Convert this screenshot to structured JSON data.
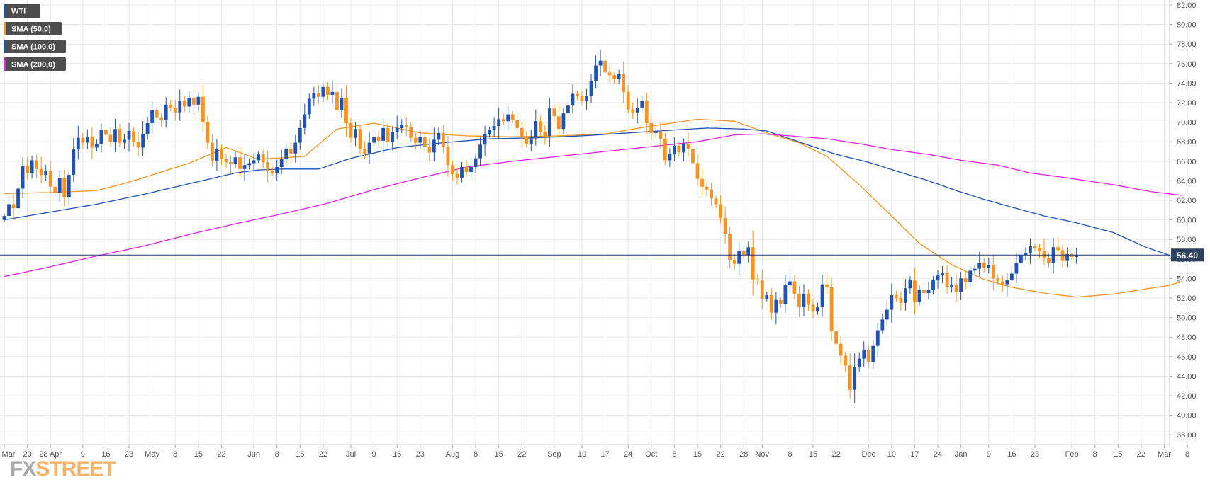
{
  "colors": {
    "bull": "#1f52b5",
    "bear": "#f7931e",
    "price_line": "#1a3a7a",
    "price_tag_bg": "#2b3f5e",
    "grid": "#e8e8e8",
    "axis_text": "#555555",
    "legend_bg": "#4d4d4d",
    "watermark_fx": "#a9a9a9",
    "watermark_street": "#f7b267"
  },
  "legend": [
    {
      "label": "WTI",
      "color": "#1f52b5"
    },
    {
      "label": "SMA (50,0)",
      "color": "#f7931e"
    },
    {
      "label": "SMA (100,0)",
      "color": "#1f52b5"
    },
    {
      "label": "SMA (200,0)",
      "color": "#e020e0"
    }
  ],
  "watermark": {
    "part1": "FX",
    "part2": "STREET"
  },
  "current_price": {
    "value": 56.4,
    "label": "56.40"
  },
  "chart_data": {
    "type": "candlestick",
    "symbol": "WTI",
    "ylim": [
      37,
      82.5
    ],
    "y_ticks": [
      "82.00",
      "80.00",
      "78.00",
      "76.00",
      "74.00",
      "72.00",
      "70.00",
      "68.00",
      "66.00",
      "64.00",
      "62.00",
      "60.00",
      "58.00",
      "56.00",
      "54.00",
      "52.00",
      "50.00",
      "48.00",
      "46.00",
      "44.00",
      "42.00",
      "40.00",
      "38.00"
    ],
    "x_ticks": [
      {
        "label": "Mar",
        "i": 0
      },
      {
        "label": "20",
        "i": 5
      },
      {
        "label": "28 Apr",
        "i": 10
      },
      {
        "label": "9",
        "i": 17
      },
      {
        "label": "16",
        "i": 22
      },
      {
        "label": "23",
        "i": 27
      },
      {
        "label": "May",
        "i": 32
      },
      {
        "label": "8",
        "i": 37
      },
      {
        "label": "15",
        "i": 42
      },
      {
        "label": "22",
        "i": 47
      },
      {
        "label": "Jun",
        "i": 54
      },
      {
        "label": "8",
        "i": 59
      },
      {
        "label": "15",
        "i": 64
      },
      {
        "label": "22",
        "i": 69
      },
      {
        "label": "Jul",
        "i": 75
      },
      {
        "label": "9",
        "i": 80
      },
      {
        "label": "16",
        "i": 85
      },
      {
        "label": "23",
        "i": 90
      },
      {
        "label": "Aug",
        "i": 97
      },
      {
        "label": "8",
        "i": 102
      },
      {
        "label": "15",
        "i": 107
      },
      {
        "label": "22",
        "i": 112
      },
      {
        "label": "Sep",
        "i": 119
      },
      {
        "label": "10",
        "i": 125
      },
      {
        "label": "17",
        "i": 130
      },
      {
        "label": "24",
        "i": 135
      },
      {
        "label": "Oct",
        "i": 140
      },
      {
        "label": "8",
        "i": 145
      },
      {
        "label": "15",
        "i": 150
      },
      {
        "label": "22",
        "i": 155
      },
      {
        "label": "28",
        "i": 160
      },
      {
        "label": "Nov",
        "i": 164
      },
      {
        "label": "8",
        "i": 170
      },
      {
        "label": "15",
        "i": 175
      },
      {
        "label": "22",
        "i": 180
      },
      {
        "label": "Dec",
        "i": 187
      },
      {
        "label": "10",
        "i": 192
      },
      {
        "label": "17",
        "i": 197
      },
      {
        "label": "24",
        "i": 202
      },
      {
        "label": "Jan",
        "i": 207
      },
      {
        "label": "9",
        "i": 213
      },
      {
        "label": "16",
        "i": 218
      },
      {
        "label": "23",
        "i": 223
      },
      {
        "label": "Feb",
        "i": 231
      },
      {
        "label": "8",
        "i": 236
      },
      {
        "label": "15",
        "i": 241
      },
      {
        "label": "22",
        "i": 246
      },
      {
        "label": "Mar",
        "i": 251
      },
      {
        "label": "8",
        "i": 256
      }
    ],
    "closes": [
      60.4,
      61.6,
      61.2,
      63.2,
      65.5,
      64.8,
      66.1,
      65.2,
      64.6,
      65.0,
      63.4,
      62.8,
      64.3,
      62.3,
      64.6,
      67.2,
      68.4,
      67.9,
      68.5,
      67.4,
      67.8,
      69.2,
      68.7,
      68.0,
      69.3,
      67.9,
      68.2,
      69.1,
      68.0,
      67.4,
      68.8,
      69.9,
      71.2,
      70.5,
      70.2,
      71.8,
      71.5,
      71.0,
      72.2,
      71.6,
      72.5,
      71.8,
      72.6,
      70.0,
      67.9,
      66.0,
      67.3,
      66.2,
      65.9,
      65.7,
      66.4,
      65.2,
      65.6,
      65.8,
      66.1,
      66.7,
      65.9,
      65.0,
      64.8,
      65.4,
      66.2,
      67.3,
      66.8,
      67.9,
      69.4,
      70.8,
      72.4,
      73.0,
      72.6,
      73.6,
      72.8,
      73.1,
      71.2,
      72.5,
      69.9,
      68.4,
      69.3,
      67.3,
      66.8,
      67.9,
      68.5,
      68.1,
      69.4,
      68.0,
      69.0,
      69.4,
      69.7,
      69.5,
      68.4,
      67.9,
      68.5,
      67.5,
      66.9,
      68.2,
      68.9,
      67.5,
      65.6,
      64.7,
      64.3,
      65.4,
      64.9,
      65.4,
      66.3,
      67.7,
      68.8,
      69.2,
      69.6,
      70.3,
      70.1,
      70.8,
      70.2,
      69.4,
      68.5,
      67.8,
      68.4,
      70.1,
      69.0,
      68.6,
      71.4,
      70.6,
      69.3,
      70.9,
      71.7,
      72.9,
      72.7,
      72.2,
      72.7,
      74.2,
      75.8,
      76.3,
      75.1,
      74.8,
      74.4,
      74.9,
      73.1,
      71.3,
      71.0,
      71.5,
      72.2,
      69.9,
      68.9,
      69.0,
      68.3,
      66.1,
      66.7,
      67.6,
      66.9,
      67.8,
      67.3,
      65.8,
      64.2,
      63.4,
      63.1,
      62.2,
      61.6,
      60.2,
      58.6,
      55.9,
      55.5,
      56.8,
      56.4,
      57.2,
      53.9,
      53.8,
      51.9,
      52.3,
      50.5,
      51.8,
      51.4,
      53.3,
      53.7,
      52.4,
      51.1,
      52.4,
      51.3,
      50.6,
      51.1,
      53.4,
      53.1,
      48.6,
      47.3,
      46.1,
      45.1,
      42.6,
      44.9,
      45.8,
      46.7,
      45.4,
      47.1,
      48.7,
      49.8,
      50.8,
      52.3,
      52.0,
      51.5,
      53.0,
      53.8,
      51.6,
      52.8,
      52.5,
      52.8,
      53.8,
      54.3,
      54.6,
      53.1,
      53.3,
      52.6,
      54.0,
      53.6,
      54.8,
      55.0,
      55.6,
      55.1,
      55.4,
      54.0,
      53.7,
      53.4,
      53.8,
      54.5,
      55.6,
      56.4,
      56.6,
      57.3,
      57.1,
      56.8,
      56.1,
      55.6,
      57.2,
      56.9,
      55.8,
      56.5,
      56.2,
      56.4
    ],
    "series": [
      {
        "name": "SMA (50,0)",
        "color": "#f7931e",
        "points": [
          [
            0,
            62.7
          ],
          [
            10,
            62.8
          ],
          [
            20,
            63.0
          ],
          [
            25,
            63.6
          ],
          [
            30,
            64.3
          ],
          [
            40,
            65.8
          ],
          [
            48,
            67.4
          ],
          [
            55,
            66.2
          ],
          [
            65,
            66.5
          ],
          [
            72,
            69.3
          ],
          [
            80,
            69.9
          ],
          [
            90,
            68.9
          ],
          [
            100,
            68.6
          ],
          [
            110,
            68.5
          ],
          [
            120,
            68.6
          ],
          [
            130,
            68.8
          ],
          [
            140,
            69.6
          ],
          [
            150,
            70.3
          ],
          [
            158,
            70.1
          ],
          [
            165,
            68.9
          ],
          [
            172,
            67.9
          ],
          [
            178,
            66.5
          ],
          [
            185,
            63.6
          ],
          [
            192,
            60.4
          ],
          [
            198,
            57.6
          ],
          [
            205,
            55.4
          ],
          [
            212,
            53.9
          ],
          [
            218,
            53.1
          ],
          [
            225,
            52.5
          ],
          [
            232,
            52.1
          ],
          [
            240,
            52.4
          ],
          [
            248,
            53.0
          ],
          [
            252,
            53.3
          ],
          [
            255,
            53.7
          ]
        ]
      },
      {
        "name": "SMA (100,0)",
        "color": "#1f52b5",
        "points": [
          [
            0,
            60.0
          ],
          [
            10,
            60.8
          ],
          [
            20,
            61.6
          ],
          [
            30,
            62.6
          ],
          [
            40,
            63.7
          ],
          [
            50,
            64.8
          ],
          [
            55,
            65.1
          ],
          [
            60,
            65.2
          ],
          [
            68,
            65.2
          ],
          [
            75,
            66.3
          ],
          [
            85,
            67.4
          ],
          [
            95,
            67.9
          ],
          [
            105,
            68.3
          ],
          [
            115,
            68.4
          ],
          [
            125,
            68.6
          ],
          [
            135,
            68.9
          ],
          [
            145,
            69.2
          ],
          [
            152,
            69.4
          ],
          [
            160,
            69.3
          ],
          [
            165,
            69.1
          ],
          [
            170,
            68.3
          ],
          [
            175,
            67.5
          ],
          [
            180,
            66.7
          ],
          [
            187,
            65.9
          ],
          [
            193,
            65.0
          ],
          [
            200,
            64.0
          ],
          [
            206,
            63.0
          ],
          [
            212,
            62.1
          ],
          [
            218,
            61.3
          ],
          [
            225,
            60.4
          ],
          [
            232,
            59.7
          ],
          [
            240,
            58.7
          ],
          [
            247,
            57.2
          ],
          [
            252,
            56.4
          ],
          [
            255,
            55.7
          ]
        ]
      },
      {
        "name": "SMA (200,0)",
        "color": "#e020e0",
        "points": [
          [
            0,
            54.2
          ],
          [
            10,
            55.2
          ],
          [
            20,
            56.3
          ],
          [
            30,
            57.3
          ],
          [
            40,
            58.5
          ],
          [
            50,
            59.6
          ],
          [
            60,
            60.6
          ],
          [
            70,
            61.7
          ],
          [
            80,
            63.1
          ],
          [
            90,
            64.3
          ],
          [
            100,
            65.4
          ],
          [
            110,
            66.0
          ],
          [
            120,
            66.5
          ],
          [
            130,
            67.0
          ],
          [
            140,
            67.5
          ],
          [
            150,
            68.0
          ],
          [
            158,
            68.7
          ],
          [
            164,
            68.8
          ],
          [
            170,
            68.6
          ],
          [
            178,
            68.3
          ],
          [
            185,
            67.8
          ],
          [
            192,
            67.2
          ],
          [
            200,
            66.7
          ],
          [
            207,
            66.1
          ],
          [
            215,
            65.6
          ],
          [
            222,
            64.8
          ],
          [
            230,
            64.3
          ],
          [
            240,
            63.6
          ],
          [
            248,
            62.9
          ],
          [
            255,
            62.5
          ]
        ]
      }
    ]
  }
}
